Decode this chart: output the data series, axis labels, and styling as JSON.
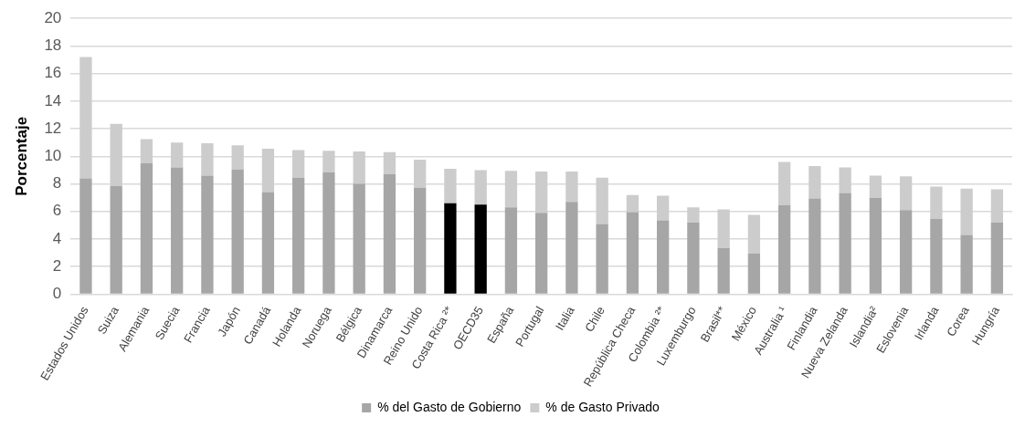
{
  "chart_data": {
    "type": "bar",
    "stacked": true,
    "ylabel": "Porcentaje",
    "categories": [
      "Estados Unidos",
      "Suiza",
      "Alemania",
      "Suecia",
      "Francia",
      "Japón",
      "Canadá",
      "Holanda",
      "Noruega",
      "Bélgica",
      "Dinamarca",
      "Reino Unido",
      "Costa Rica ²*",
      "OECD35",
      "España",
      "Portugal",
      "Italia",
      "Chile",
      "República Checa",
      "Colombia ²*",
      "Luxemburgo",
      "Brasil**",
      "México",
      "Australia ¹",
      "Finlandia",
      "Nueva Zelanda",
      "Islandia²",
      "Eslovenia",
      "Irlanda",
      "Corea",
      "Hungría"
    ],
    "series": [
      {
        "name": "% del Gasto de Gobierno",
        "color": "#a6a6a6",
        "colors": [
          "#a6a6a6",
          "#a6a6a6",
          "#a6a6a6",
          "#a6a6a6",
          "#a6a6a6",
          "#a6a6a6",
          "#a6a6a6",
          "#a6a6a6",
          "#a6a6a6",
          "#a6a6a6",
          "#a6a6a6",
          "#a6a6a6",
          "#000000",
          "#000000",
          "#a6a6a6",
          "#a6a6a6",
          "#a6a6a6",
          "#a6a6a6",
          "#a6a6a6",
          "#a6a6a6",
          "#a6a6a6",
          "#a6a6a6",
          "#a6a6a6",
          "#a6a6a6",
          "#a6a6a6",
          "#a6a6a6",
          "#a6a6a6",
          "#a6a6a6",
          "#a6a6a6",
          "#a6a6a6",
          "#a6a6a6"
        ],
        "values": [
          8.4,
          7.85,
          9.5,
          9.2,
          8.6,
          9.05,
          7.4,
          8.45,
          8.85,
          8.0,
          8.7,
          7.7,
          6.6,
          6.5,
          6.3,
          5.9,
          6.7,
          5.1,
          5.95,
          5.35,
          5.2,
          3.35,
          2.95,
          6.45,
          6.95,
          7.35,
          7.0,
          6.1,
          5.45,
          4.3,
          5.2
        ]
      },
      {
        "name": "% de Gasto Privado",
        "color": "#cccccc",
        "values": [
          8.8,
          4.5,
          1.75,
          1.8,
          2.35,
          1.75,
          3.15,
          2.0,
          1.55,
          2.35,
          1.6,
          2.05,
          2.5,
          2.5,
          2.65,
          3.0,
          2.2,
          3.35,
          1.25,
          1.8,
          1.1,
          2.8,
          2.8,
          3.15,
          2.35,
          1.85,
          1.6,
          2.45,
          2.35,
          3.35,
          2.4
        ]
      }
    ],
    "ylim": [
      0,
      20
    ],
    "yticks": [
      0,
      2,
      4,
      6,
      8,
      10,
      12,
      14,
      16,
      18,
      20
    ],
    "grid": "y",
    "legend": "bottom"
  }
}
